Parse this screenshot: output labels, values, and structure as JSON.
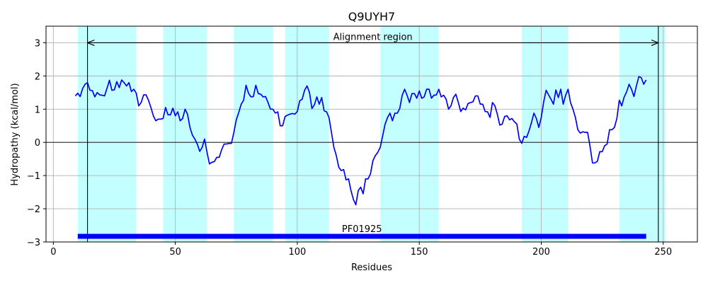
{
  "chart_data": {
    "type": "line",
    "title": "Q9UYH7",
    "xlabel": "Residues",
    "ylabel": "Hydropathy (kcal/mol)",
    "xlim": [
      -3,
      264
    ],
    "ylim": [
      -3,
      3.5
    ],
    "xticks": [
      0,
      50,
      100,
      150,
      200,
      250
    ],
    "yticks": [
      -3,
      -2,
      -1,
      0,
      1,
      2,
      3
    ],
    "grid": true,
    "colors": {
      "line": "#0000ff",
      "band": "#c4ffff",
      "domain": "#0000ff",
      "grid": "#b0b0b0"
    },
    "highlight_bands": [
      [
        10,
        34
      ],
      [
        45,
        63
      ],
      [
        74,
        90
      ],
      [
        95,
        113
      ],
      [
        134,
        158
      ],
      [
        192,
        211
      ],
      [
        232,
        251
      ]
    ],
    "alignment": {
      "label": "Alignment region",
      "start": 14,
      "end": 248
    },
    "domain": {
      "label": "PF01925",
      "start": 10,
      "end": 243,
      "y": -2.83
    },
    "series": [
      {
        "x": [
          9,
          10,
          11,
          12,
          13,
          14,
          15,
          16,
          17,
          18,
          19,
          20,
          21,
          22,
          23,
          24,
          25,
          26,
          27,
          28,
          29,
          30,
          31,
          32,
          33,
          34,
          35,
          36,
          37,
          38,
          39,
          40,
          41,
          42,
          43,
          44,
          45,
          46,
          47,
          48,
          49,
          50,
          51,
          52,
          53,
          54,
          55,
          56,
          57,
          58,
          59,
          60,
          61,
          62,
          63,
          64,
          65,
          66,
          67,
          68,
          69,
          70,
          71,
          72,
          73,
          74,
          75,
          76,
          77,
          78,
          79,
          80,
          81,
          82,
          83,
          84,
          85,
          86,
          87,
          88,
          89,
          90,
          91,
          92,
          93,
          94,
          95,
          96,
          97,
          98,
          99,
          100,
          101,
          102,
          103,
          104,
          105,
          106,
          107,
          108,
          109,
          110,
          111,
          112,
          113,
          114,
          115,
          116,
          117,
          118,
          119,
          120,
          121,
          122,
          123,
          124,
          125,
          126,
          127,
          128,
          129,
          130,
          131,
          132,
          133,
          134,
          135,
          136,
          137,
          138,
          139,
          140,
          141,
          142,
          143,
          144,
          145,
          146,
          147,
          148,
          149,
          150,
          151,
          152,
          153,
          154,
          155,
          156,
          157,
          158,
          159,
          160,
          161,
          162,
          163,
          164,
          165,
          166,
          167,
          168,
          169,
          170,
          171,
          172,
          173,
          174,
          175,
          176,
          177,
          178,
          179,
          180,
          181,
          182,
          183,
          184,
          185,
          186,
          187,
          188,
          189,
          190,
          191,
          192,
          193,
          194,
          195,
          196,
          197,
          198,
          199,
          200,
          201,
          202,
          203,
          204,
          205,
          206,
          207,
          208,
          209,
          210,
          211,
          212,
          213,
          214,
          215,
          216,
          217,
          218,
          219,
          220,
          221,
          222,
          223,
          224,
          225,
          226,
          227,
          228,
          229,
          230,
          231,
          232,
          233,
          234,
          235,
          236,
          237,
          238,
          239,
          240,
          241,
          242,
          243
        ],
        "y": [
          1.4,
          1.48,
          1.38,
          1.62,
          1.75,
          1.8,
          1.57,
          1.56,
          1.37,
          1.5,
          1.43,
          1.42,
          1.4,
          1.63,
          1.87,
          1.57,
          1.58,
          1.83,
          1.65,
          1.88,
          1.8,
          1.7,
          1.8,
          1.53,
          1.6,
          1.48,
          1.1,
          1.2,
          1.43,
          1.43,
          1.27,
          1.05,
          0.8,
          0.65,
          0.7,
          0.7,
          0.72,
          1.05,
          0.83,
          0.83,
          1.03,
          0.8,
          0.92,
          0.65,
          0.72,
          1.0,
          0.85,
          0.45,
          0.22,
          0.1,
          -0.05,
          -0.27,
          -0.15,
          0.1,
          -0.3,
          -0.65,
          -0.6,
          -0.58,
          -0.45,
          -0.45,
          -0.22,
          -0.05,
          -0.05,
          -0.03,
          -0.03,
          0.3,
          0.68,
          0.9,
          1.15,
          1.27,
          1.72,
          1.48,
          1.37,
          1.38,
          1.72,
          1.47,
          1.45,
          1.37,
          1.38,
          1.2,
          1.0,
          1.0,
          0.88,
          0.92,
          0.5,
          0.5,
          0.78,
          0.82,
          0.85,
          0.87,
          0.85,
          0.93,
          1.25,
          1.3,
          1.57,
          1.7,
          1.5,
          1.02,
          1.13,
          1.37,
          1.15,
          1.35,
          0.95,
          0.92,
          0.75,
          0.3,
          -0.15,
          -0.4,
          -0.75,
          -0.85,
          -0.82,
          -1.13,
          -1.1,
          -1.45,
          -1.72,
          -1.88,
          -1.45,
          -1.35,
          -1.55,
          -1.1,
          -1.1,
          -0.95,
          -0.55,
          -0.4,
          -0.3,
          -0.15,
          0.2,
          0.55,
          0.75,
          0.88,
          0.65,
          0.88,
          0.88,
          1.02,
          1.42,
          1.6,
          1.42,
          1.2,
          1.47,
          1.47,
          1.33,
          1.55,
          1.33,
          1.37,
          1.6,
          1.6,
          1.33,
          1.42,
          1.43,
          1.6,
          1.37,
          1.42,
          1.3,
          1.0,
          1.1,
          1.35,
          1.45,
          1.2,
          0.93,
          1.03,
          0.98,
          1.17,
          1.2,
          1.22,
          1.4,
          1.4,
          1.15,
          1.15,
          0.93,
          0.92,
          0.75,
          1.2,
          1.1,
          0.85,
          0.52,
          0.55,
          0.78,
          0.8,
          0.68,
          0.72,
          0.62,
          0.55,
          0.1,
          -0.03,
          0.18,
          0.15,
          0.35,
          0.6,
          0.88,
          0.72,
          0.45,
          0.75,
          1.22,
          1.57,
          1.43,
          1.3,
          1.15,
          1.58,
          1.35,
          1.6,
          1.15,
          1.42,
          1.6,
          1.2,
          1.0,
          0.75,
          0.38,
          0.28,
          0.32,
          0.3,
          0.3,
          -0.12,
          -0.62,
          -0.62,
          -0.57,
          -0.28,
          -0.28,
          -0.1,
          -0.05,
          0.38,
          0.38,
          0.45,
          0.72,
          1.27,
          1.1,
          1.37,
          1.52,
          1.75,
          1.6,
          1.38,
          1.7,
          1.98,
          1.95,
          1.75,
          1.88
        ]
      }
    ]
  }
}
